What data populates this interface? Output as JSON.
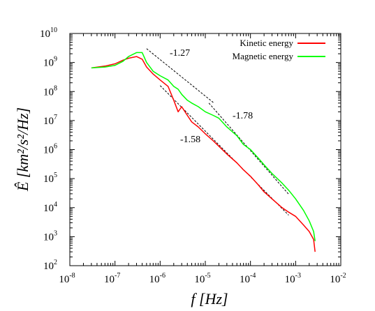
{
  "chart_data": {
    "type": "line",
    "title": "",
    "xlabel": "f [Hz]",
    "ylabel": "Ê [km²/s²/Hz]",
    "x_scale": "log",
    "y_scale": "log",
    "xlim": [
      1e-08,
      0.01
    ],
    "ylim": [
      100.0,
      10000000000.0
    ],
    "x_ticks": [
      {
        "mant": "10",
        "exp": "-8"
      },
      {
        "mant": "10",
        "exp": "-7"
      },
      {
        "mant": "10",
        "exp": "-6"
      },
      {
        "mant": "10",
        "exp": "-5"
      },
      {
        "mant": "10",
        "exp": "-4"
      },
      {
        "mant": "10",
        "exp": "-3"
      },
      {
        "mant": "10",
        "exp": "-2"
      }
    ],
    "y_ticks": [
      {
        "mant": "10",
        "exp": "2"
      },
      {
        "mant": "10",
        "exp": "3"
      },
      {
        "mant": "10",
        "exp": "4"
      },
      {
        "mant": "10",
        "exp": "5"
      },
      {
        "mant": "10",
        "exp": "6"
      },
      {
        "mant": "10",
        "exp": "7"
      },
      {
        "mant": "10",
        "exp": "8"
      },
      {
        "mant": "10",
        "exp": "9"
      },
      {
        "mant": "10",
        "exp": "10"
      }
    ],
    "legend_position": "top-right",
    "series": [
      {
        "name": "Kinetic energy",
        "color": "#ff0000",
        "x": [
          3e-08,
          6e-08,
          1e-07,
          1.5e-07,
          2e-07,
          3e-07,
          4e-07,
          5e-07,
          7e-07,
          1e-06,
          1.5e-06,
          2e-06,
          2.5e-06,
          3e-06,
          4e-06,
          5e-06,
          7e-06,
          1e-05,
          1.5e-05,
          2e-05,
          3e-05,
          5e-05,
          7e-05,
          0.0001,
          0.00015,
          0.0002,
          0.0003,
          0.0005,
          0.0007,
          0.001,
          0.0015,
          0.002,
          0.0025,
          0.0027
        ],
        "y": [
          650000000.0,
          750000000.0,
          900000000.0,
          1200000000.0,
          1400000000.0,
          1600000000.0,
          1300000000.0,
          700000000.0,
          400000000.0,
          250000000.0,
          150000000.0,
          50000000.0,
          20000000.0,
          30000000.0,
          15000000.0,
          9000000.0,
          6000000.0,
          3500000.0,
          2000000.0,
          1300000.0,
          700000.0,
          350000.0,
          200000.0,
          120000.0,
          60000.0,
          35000.0,
          20000.0,
          10000.0,
          7000.0,
          5000.0,
          2500.0,
          1500.0,
          800.0,
          300.0
        ]
      },
      {
        "name": "Magnetic energy",
        "color": "#00ff00",
        "x": [
          3e-08,
          6e-08,
          1e-07,
          1.5e-07,
          2e-07,
          3e-07,
          4e-07,
          5e-07,
          7e-07,
          1e-06,
          1.5e-06,
          2e-06,
          2.5e-06,
          3e-06,
          4e-06,
          5e-06,
          7e-06,
          1e-05,
          1.5e-05,
          2e-05,
          3e-05,
          5e-05,
          7e-05,
          0.0001,
          0.00015,
          0.0002,
          0.0003,
          0.0005,
          0.0007,
          0.001,
          0.0015,
          0.002,
          0.0025,
          0.0027
        ],
        "y": [
          650000000.0,
          700000000.0,
          800000000.0,
          1100000000.0,
          1600000000.0,
          2200000000.0,
          2200000000.0,
          1000000000.0,
          500000000.0,
          350000000.0,
          250000000.0,
          150000000.0,
          120000000.0,
          80000000.0,
          50000000.0,
          40000000.0,
          30000000.0,
          20000000.0,
          15000000.0,
          12000000.0,
          6000000.0,
          3000000.0,
          1500000.0,
          1000000.0,
          500000.0,
          300000.0,
          150000.0,
          70000.0,
          40000.0,
          20000.0,
          8000.0,
          3500.0,
          1500.0,
          700.0
        ]
      }
    ],
    "reference_lines": [
      {
        "label": "-1.27",
        "slope": -1.27,
        "x": [
          5e-07,
          1.5e-05
        ],
        "y": [
          3000000000.0,
          42000000.0
        ]
      },
      {
        "label": "-1.78",
        "slope": -1.78,
        "x": [
          1.2e-05,
          0.0007
        ],
        "y": [
          40000000.0,
          29000.0
        ]
      },
      {
        "label": "-1.58",
        "slope": -1.58,
        "x": [
          1e-06,
          0.0007
        ],
        "y": [
          160000000.0,
          5500.0
        ]
      }
    ]
  }
}
